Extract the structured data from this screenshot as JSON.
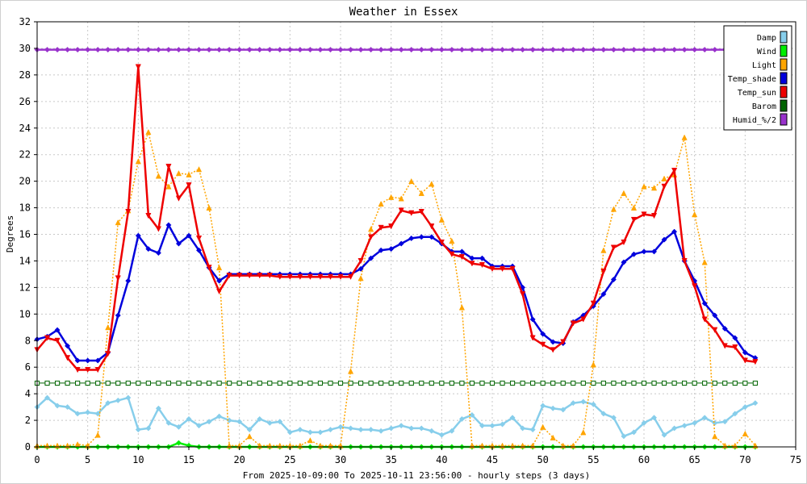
{
  "chart_data": {
    "type": "line",
    "title": "Weather in Essex",
    "xlabel": "From 2025-10-09:00 To 2025-10-11 23:56:00 - hourly steps (3 days)",
    "ylabel": "Degrees",
    "xlim": [
      0,
      75
    ],
    "ylim": [
      0,
      32
    ],
    "xticks": [
      0,
      5,
      10,
      15,
      20,
      25,
      30,
      35,
      40,
      45,
      50,
      55,
      60,
      65,
      70,
      75
    ],
    "yticks": [
      0,
      2,
      4,
      6,
      8,
      10,
      12,
      14,
      16,
      18,
      20,
      22,
      24,
      26,
      28,
      30,
      32
    ],
    "grid": true,
    "legend_position": "top-right",
    "series": [
      {
        "name": "Damp",
        "color": "#87ceeb",
        "marker": "diamond",
        "dash": "",
        "values": [
          3.0,
          3.7,
          3.1,
          3.0,
          2.5,
          2.6,
          2.5,
          3.3,
          3.5,
          3.7,
          1.3,
          1.4,
          2.9,
          1.8,
          1.5,
          2.1,
          1.6,
          1.9,
          2.3,
          2.0,
          1.9,
          1.3,
          2.1,
          1.8,
          1.9,
          1.1,
          1.3,
          1.1,
          1.1,
          1.3,
          1.5,
          1.4,
          1.3,
          1.3,
          1.2,
          1.4,
          1.6,
          1.4,
          1.4,
          1.2,
          0.9,
          1.2,
          2.1,
          2.4,
          1.6,
          1.6,
          1.7,
          2.2,
          1.4,
          1.3,
          3.1,
          2.9,
          2.8,
          3.3,
          3.4,
          3.2,
          2.5,
          2.2,
          0.8,
          1.1,
          1.8,
          2.2,
          0.9,
          1.4,
          1.6,
          1.8,
          2.2,
          1.8,
          1.9,
          2.5,
          3.0,
          3.3
        ]
      },
      {
        "name": "Wind",
        "color": "#00ee00",
        "marker": "diamond",
        "dash": "",
        "values": [
          0.0,
          0.0,
          0.0,
          0.0,
          0.0,
          0.0,
          0.0,
          0.0,
          0.0,
          0.0,
          0.0,
          0.0,
          0.0,
          0.0,
          0.3,
          0.1,
          0.0,
          0.0,
          0.0,
          0.0,
          0.0,
          0.0,
          0.0,
          0.0,
          0.0,
          0.0,
          0.0,
          0.0,
          0.0,
          0.0,
          0.0,
          0.0,
          0.0,
          0.0,
          0.0,
          0.0,
          0.0,
          0.0,
          0.0,
          0.0,
          0.0,
          0.0,
          0.0,
          0.0,
          0.0,
          0.0,
          0.0,
          0.0,
          0.0,
          0.0,
          0.0,
          0.0,
          0.0,
          0.0,
          0.0,
          0.0,
          0.0,
          0.0,
          0.0,
          0.0,
          0.0,
          0.0,
          0.0,
          0.0,
          0.0,
          0.0,
          0.0,
          0.0,
          0.0,
          0.0,
          0.0,
          0.0
        ]
      },
      {
        "name": "Light",
        "color": "#ffa500",
        "marker": "triangle-up",
        "dash": "2,2",
        "values": [
          0.1,
          0.1,
          0.1,
          0.1,
          0.2,
          0.1,
          0.9,
          9.0,
          16.9,
          17.8,
          21.5,
          23.7,
          20.4,
          19.6,
          20.6,
          20.5,
          20.9,
          18.0,
          13.5,
          0.1,
          0.1,
          0.8,
          0.1,
          0.1,
          0.1,
          0.1,
          0.1,
          0.5,
          0.1,
          0.1,
          0.1,
          5.7,
          12.7,
          16.4,
          18.3,
          18.8,
          18.7,
          20.0,
          19.1,
          19.8,
          17.1,
          15.5,
          10.5,
          0.1,
          0.1,
          0.1,
          0.1,
          0.1,
          0.1,
          0.1,
          1.5,
          0.7,
          0.1,
          0.1,
          1.1,
          6.2,
          14.8,
          17.9,
          19.1,
          18.0,
          19.6,
          19.5,
          20.2,
          20.5,
          23.3,
          17.5,
          13.9,
          0.8,
          0.1,
          0.1,
          1.0,
          0.1
        ]
      },
      {
        "name": "Temp_shade",
        "color": "#0000dd",
        "marker": "diamond",
        "dash": "",
        "values": [
          8.1,
          8.3,
          8.8,
          7.6,
          6.5,
          6.5,
          6.5,
          7.1,
          9.9,
          12.5,
          15.9,
          14.9,
          14.6,
          16.7,
          15.3,
          15.9,
          14.8,
          13.5,
          12.5,
          13.0,
          13.0,
          13.0,
          13.0,
          13.0,
          13.0,
          13.0,
          13.0,
          13.0,
          13.0,
          13.0,
          13.0,
          13.0,
          13.4,
          14.2,
          14.8,
          14.9,
          15.3,
          15.7,
          15.8,
          15.8,
          15.3,
          14.7,
          14.7,
          14.2,
          14.2,
          13.6,
          13.6,
          13.6,
          12.0,
          9.6,
          8.5,
          7.9,
          7.8,
          9.4,
          9.9,
          10.6,
          11.5,
          12.6,
          13.9,
          14.5,
          14.7,
          14.7,
          15.6,
          16.2,
          14.0,
          12.5,
          10.8,
          9.9,
          8.9,
          8.2,
          7.1,
          6.7
        ]
      },
      {
        "name": "Temp_sun",
        "color": "#ee0000",
        "marker": "triangle-down",
        "dash": "",
        "values": [
          7.3,
          8.2,
          8.0,
          6.7,
          5.8,
          5.8,
          5.8,
          7.0,
          12.7,
          17.7,
          28.6,
          17.4,
          16.4,
          21.1,
          18.7,
          19.7,
          15.7,
          13.5,
          11.7,
          12.9,
          12.9,
          12.9,
          12.9,
          12.9,
          12.8,
          12.8,
          12.8,
          12.8,
          12.8,
          12.8,
          12.8,
          12.8,
          14.0,
          15.8,
          16.5,
          16.6,
          17.8,
          17.6,
          17.7,
          16.6,
          15.4,
          14.5,
          14.3,
          13.8,
          13.7,
          13.4,
          13.4,
          13.4,
          11.5,
          8.2,
          7.7,
          7.3,
          7.9,
          9.3,
          9.6,
          10.8,
          13.2,
          15.0,
          15.4,
          17.1,
          17.5,
          17.4,
          19.6,
          20.8,
          14.0,
          12.1,
          9.6,
          8.8,
          7.6,
          7.5,
          6.5,
          6.4
        ]
      },
      {
        "name": "Barom",
        "color": "#006400",
        "marker": "square-open",
        "dash": "",
        "values": [
          4.8,
          4.8,
          4.8,
          4.8,
          4.8,
          4.8,
          4.8,
          4.8,
          4.8,
          4.8,
          4.8,
          4.8,
          4.8,
          4.8,
          4.8,
          4.8,
          4.8,
          4.8,
          4.8,
          4.8,
          4.8,
          4.8,
          4.8,
          4.8,
          4.8,
          4.8,
          4.8,
          4.8,
          4.8,
          4.8,
          4.8,
          4.8,
          4.8,
          4.8,
          4.8,
          4.8,
          4.8,
          4.8,
          4.8,
          4.8,
          4.8,
          4.8,
          4.8,
          4.8,
          4.8,
          4.8,
          4.8,
          4.8,
          4.8,
          4.8,
          4.8,
          4.8,
          4.8,
          4.8,
          4.8,
          4.8,
          4.8,
          4.8,
          4.8,
          4.8,
          4.8,
          4.8,
          4.8,
          4.8,
          4.8,
          4.8,
          4.8,
          4.8,
          4.8,
          4.8,
          4.8,
          4.8
        ]
      },
      {
        "name": "Humid_%/2",
        "color": "#9932cc",
        "marker": "diamond",
        "dash": "",
        "values": [
          29.9,
          29.9,
          29.9,
          29.9,
          29.9,
          29.9,
          29.9,
          29.9,
          29.9,
          29.9,
          29.9,
          29.9,
          29.9,
          29.9,
          29.9,
          29.9,
          29.9,
          29.9,
          29.9,
          29.9,
          29.9,
          29.9,
          29.9,
          29.9,
          29.9,
          29.9,
          29.9,
          29.9,
          29.9,
          29.9,
          29.9,
          29.9,
          29.9,
          29.9,
          29.9,
          29.9,
          29.9,
          29.9,
          29.9,
          29.9,
          29.9,
          29.9,
          29.9,
          29.9,
          29.9,
          29.9,
          29.9,
          29.9,
          29.9,
          29.9,
          29.9,
          29.9,
          29.9,
          29.9,
          29.9,
          29.9,
          29.9,
          29.9,
          29.9,
          29.9,
          29.9,
          29.9,
          29.9,
          29.9,
          29.9,
          29.9,
          29.9,
          29.9,
          29.9,
          29.9,
          29.9,
          29.9
        ]
      }
    ]
  }
}
